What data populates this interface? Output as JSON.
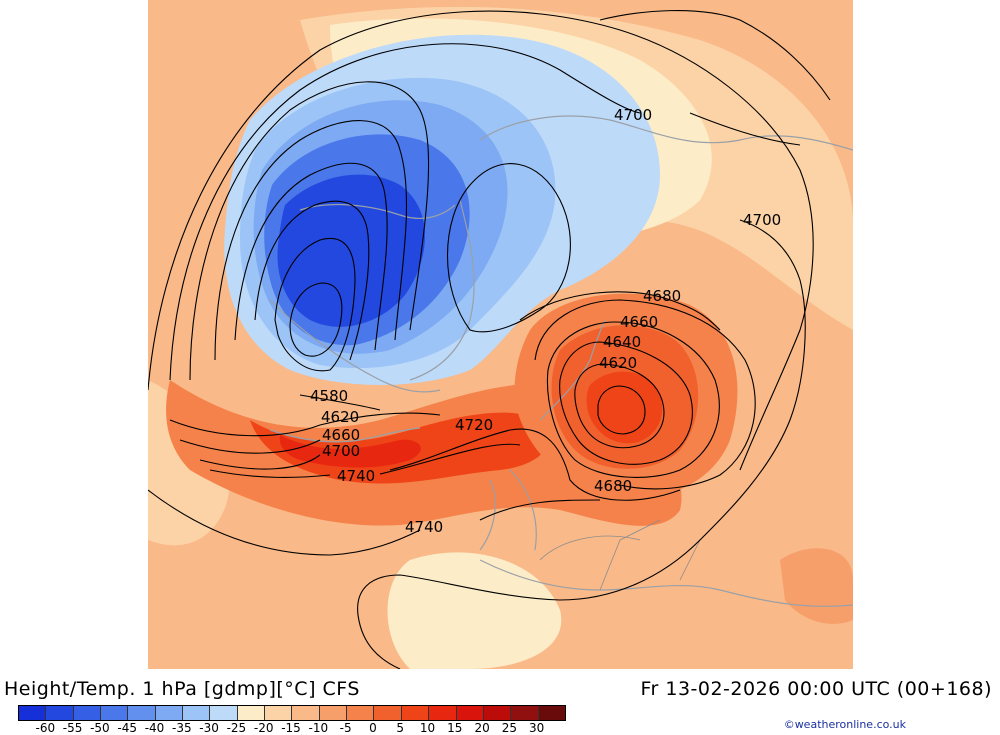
{
  "title": {
    "left": "Height/Temp. 1 hPa [gdmp][°C] CFS",
    "right": "Fr 13-02-2026 00:00 UTC (00+168)"
  },
  "credit": "©weatheronline.co.uk",
  "colorbar": {
    "colors": [
      "#1530d8",
      "#2248e0",
      "#3560e6",
      "#4a78ea",
      "#6290ee",
      "#7daaf2",
      "#9cc4f6",
      "#bedaf9",
      "#fdecc8",
      "#fcd3a6",
      "#f9b988",
      "#f79f6a",
      "#f4824a",
      "#f1612e",
      "#ee4418",
      "#e82710",
      "#d8140c",
      "#bc0c0a",
      "#901010",
      "#6a0b0b"
    ],
    "labels": [
      "-60",
      "-55",
      "-50",
      "-45",
      "-40",
      "-35",
      "-30",
      "-25",
      "-20",
      "-15",
      "-10",
      "-5",
      "0",
      "5",
      "10",
      "15",
      "20",
      "25",
      "30"
    ]
  },
  "map": {
    "contour_labels": [
      {
        "text": "4700",
        "id": "label-4700-north"
      },
      {
        "text": "4700",
        "id": "label-4700-east"
      },
      {
        "text": "4680",
        "id": "label-4680-upper"
      },
      {
        "text": "4660",
        "id": "label-4660-east"
      },
      {
        "text": "4640",
        "id": "label-4640"
      },
      {
        "text": "4620",
        "id": "label-4620-east"
      },
      {
        "text": "4580",
        "id": "label-4580"
      },
      {
        "text": "4620",
        "id": "label-4620-west"
      },
      {
        "text": "4660",
        "id": "label-4660-west"
      },
      {
        "text": "4700",
        "id": "label-4700-west"
      },
      {
        "text": "4720",
        "id": "label-4720"
      },
      {
        "text": "4740",
        "id": "label-4740-upper"
      },
      {
        "text": "4680",
        "id": "label-4680-lower"
      },
      {
        "text": "4740",
        "id": "label-4740-lower"
      }
    ]
  }
}
